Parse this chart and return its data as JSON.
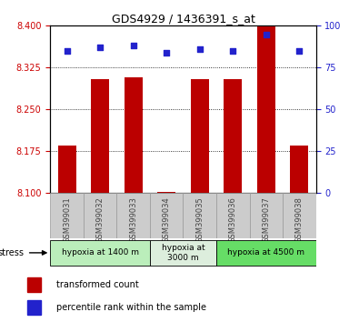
{
  "title": "GDS4929 / 1436391_s_at",
  "samples": [
    "GSM399031",
    "GSM399032",
    "GSM399033",
    "GSM399034",
    "GSM399035",
    "GSM399036",
    "GSM399037",
    "GSM399038"
  ],
  "bar_values": [
    8.185,
    8.305,
    8.307,
    8.102,
    8.305,
    8.305,
    8.4,
    8.185
  ],
  "dot_values": [
    85,
    87,
    88,
    84,
    86,
    85,
    95,
    85
  ],
  "ymin": 8.1,
  "ymax": 8.4,
  "yticks": [
    8.1,
    8.175,
    8.25,
    8.325,
    8.4
  ],
  "y2ticks": [
    0,
    25,
    50,
    75,
    100
  ],
  "bar_color": "#bb0000",
  "dot_color": "#2222cc",
  "groups": [
    {
      "label": "hypoxia at 1400 m",
      "start": 0,
      "end": 3,
      "color": "#bbeebb"
    },
    {
      "label": "hypoxia at\n3000 m",
      "start": 3,
      "end": 5,
      "color": "#ddeedd"
    },
    {
      "label": "hypoxia at 4500 m",
      "start": 5,
      "end": 8,
      "color": "#66dd66"
    }
  ],
  "stress_label": "stress",
  "legend1": "transformed count",
  "legend2": "percentile rank within the sample",
  "tick_color_left": "#cc0000",
  "tick_color_right": "#2222cc",
  "sample_box_color": "#cccccc",
  "sample_text_color": "#444444"
}
